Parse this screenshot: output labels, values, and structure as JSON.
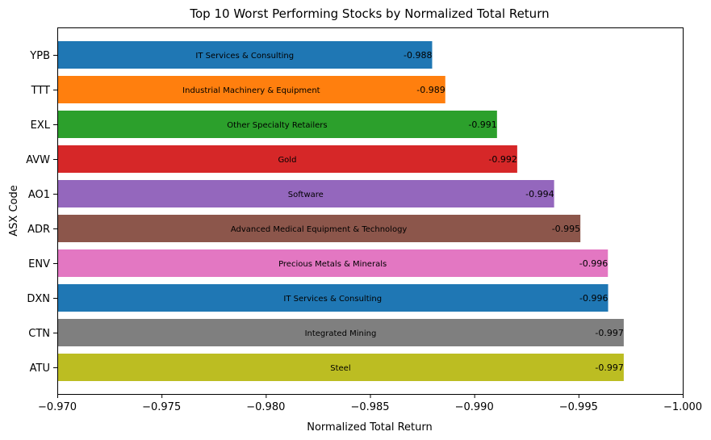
{
  "chart_data": {
    "type": "bar",
    "orientation": "horizontal",
    "title": "Top 10 Worst Performing Stocks by Normalized Total Return",
    "xlabel": "Normalized Total Return",
    "ylabel": "ASX Code",
    "xlim": [
      -0.97,
      -1.0
    ],
    "x_axis_inverted": true,
    "xticks": [
      "−0.970",
      "−0.975",
      "−0.980",
      "−0.985",
      "−0.990",
      "−0.995",
      "−1.000"
    ],
    "xtick_values": [
      -0.97,
      -0.975,
      -0.98,
      -0.985,
      -0.99,
      -0.995,
      -1.0
    ],
    "grid": false,
    "categories": [
      "YPB",
      "TTT",
      "EXL",
      "AVW",
      "AO1",
      "ADR",
      "ENV",
      "DXN",
      "CTN",
      "ATU"
    ],
    "values": [
      -0.988,
      -0.989,
      -0.991,
      -0.992,
      -0.994,
      -0.995,
      -0.996,
      -0.996,
      -0.997,
      -0.997
    ],
    "value_labels": [
      "-0.988",
      "-0.989",
      "-0.991",
      "-0.992",
      "-0.994",
      "-0.995",
      "-0.996",
      "-0.996",
      "-0.997",
      "-0.997"
    ],
    "industries": [
      "IT Services & Consulting",
      "Industrial Machinery & Equipment",
      "Other Specialty Retailers",
      "Gold",
      "Software",
      "Advanced Medical Equipment & Technology",
      "Precious Metals & Minerals",
      "IT Services & Consulting",
      "Integrated  Mining",
      "Steel"
    ],
    "bar_values_precise": [
      -0.98798,
      -0.98861,
      -0.99109,
      -0.99206,
      -0.99383,
      -0.99509,
      -0.99641,
      -0.99642,
      -0.99717,
      -0.99717
    ],
    "colors": [
      "#1f77b4",
      "#ff7f0e",
      "#2ca02c",
      "#d62728",
      "#9467bd",
      "#8c564b",
      "#e377c2",
      "#1f77b4",
      "#7f7f7f",
      "#bcbd22"
    ]
  }
}
